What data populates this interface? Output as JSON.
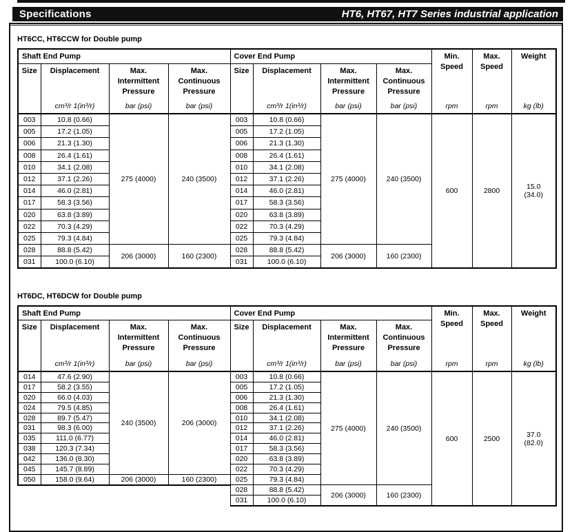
{
  "header_bar": {
    "left": "Specifications",
    "right": "HT6, HT67, HT7 Series industrial application"
  },
  "columns": {
    "size": "Size",
    "displacement": "Displacement",
    "max_intermittent": "Max.\nIntermittent\nPressure",
    "max_continuous": "Max.\nContinuous\nPressure",
    "min_speed": "Min.\nSpeed",
    "max_speed": "Max.\nSpeed",
    "weight": "Weight",
    "unit_displacement": "cm³/r 1(in³/r)",
    "unit_pressure": "bar (psi)",
    "unit_speed": "rpm",
    "unit_weight": "kg (lb)"
  },
  "tables": [
    {
      "title": "HT6CC, HT6CCW for Double pump",
      "shaft_header": "Shaft End Pump",
      "cover_header": "Cover End Pump",
      "shaft_rows": [
        [
          "003",
          "10.8 (0.66)"
        ],
        [
          "005",
          "17.2 (1.05)"
        ],
        [
          "006",
          "21.3 (1.30)"
        ],
        [
          "008",
          "26.4 (1.61)"
        ],
        [
          "010",
          "34.1 (2.08)"
        ],
        [
          "012",
          "37.1 (2.26)"
        ],
        [
          "014",
          "46.0 (2.81)"
        ],
        [
          "017",
          "58.3 (3.56)"
        ],
        [
          "020",
          "63.8 (3.89)"
        ],
        [
          "022",
          "70.3 (4.29)"
        ],
        [
          "025",
          "79.3 (4.84)"
        ],
        [
          "028",
          "88.8 (5.42)"
        ],
        [
          "031",
          "100.0 (6.10)"
        ]
      ],
      "shaft_pressure_groups": [
        {
          "span": 11,
          "intermittent": "275 (4000)",
          "continuous": "240 (3500)"
        },
        {
          "span": 2,
          "intermittent": "206 (3000)",
          "continuous": "160 (2300)"
        }
      ],
      "cover_rows": [
        [
          "003",
          "10.8 (0.66)"
        ],
        [
          "005",
          "17.2 (1.05)"
        ],
        [
          "006",
          "21.3 (1.30)"
        ],
        [
          "008",
          "26.4 (1.61)"
        ],
        [
          "010",
          "34.1 (2.08)"
        ],
        [
          "012",
          "37.1 (2.26)"
        ],
        [
          "014",
          "46.0 (2.81)"
        ],
        [
          "017",
          "58.3 (3.56)"
        ],
        [
          "020",
          "63.8 (3.89)"
        ],
        [
          "022",
          "70.3 (4.29)"
        ],
        [
          "025",
          "79.3 (4.84)"
        ],
        [
          "028",
          "88.8 (5.42)"
        ],
        [
          "031",
          "100.0 (6.10)"
        ]
      ],
      "cover_pressure_groups": [
        {
          "span": 11,
          "intermittent": "275 (4000)",
          "continuous": "240 (3500)"
        },
        {
          "span": 2,
          "intermittent": "206 (3000)",
          "continuous": "160 (2300)"
        }
      ],
      "min_speed": "600",
      "max_speed": "2800",
      "weight": "15.0\n(34.0)"
    },
    {
      "title": "HT6DC, HT6DCW for Double pump",
      "shaft_header": "Shaft End Pump",
      "cover_header": "Cover End Pump",
      "shaft_rows": [
        [
          "014",
          "47.6 (2.90)"
        ],
        [
          "017",
          "58.2 (3.55)"
        ],
        [
          "020",
          "66.0 (4.03)"
        ],
        [
          "024",
          "79.5 (4.85)"
        ],
        [
          "028",
          "89.7 (5.47)"
        ],
        [
          "031",
          "98.3 (6.00)"
        ],
        [
          "035",
          "111.0 (6.77)"
        ],
        [
          "038",
          "120.3 (7.34)"
        ],
        [
          "042",
          "136.0 (8.30)"
        ],
        [
          "045",
          "145.7 (8.89)"
        ],
        [
          "050",
          "158.0 (9.64)"
        ]
      ],
      "shaft_pressure_groups": [
        {
          "span": 10,
          "intermittent": "240 (3500)",
          "continuous": "206 (3000)"
        },
        {
          "span": 1,
          "intermittent": "206 (3000)",
          "continuous": "160 (2300)"
        }
      ],
      "cover_rows": [
        [
          "003",
          "10.8 (0.66)"
        ],
        [
          "005",
          "17.2 (1.05)"
        ],
        [
          "006",
          "21.3 (1.30)"
        ],
        [
          "008",
          "26.4 (1.61)"
        ],
        [
          "010",
          "34.1 (2.08)"
        ],
        [
          "012",
          "37.1 (2.26)"
        ],
        [
          "014",
          "46.0 (2.81)"
        ],
        [
          "017",
          "58.3 (3.56)"
        ],
        [
          "020",
          "63.8 (3.89)"
        ],
        [
          "022",
          "70.3 (4.29)"
        ],
        [
          "025",
          "79.3 (4.84)"
        ],
        [
          "028",
          "88.8 (5.42)"
        ],
        [
          "031",
          "100.0 (6.10)"
        ]
      ],
      "cover_pressure_groups": [
        {
          "span": 11,
          "intermittent": "275 (4000)",
          "continuous": "240 (3500)"
        },
        {
          "span": 2,
          "intermittent": "206 (3000)",
          "continuous": "160 (2300)"
        }
      ],
      "min_speed": "600",
      "max_speed": "2500",
      "weight": "37.0\n(82.0)"
    }
  ]
}
